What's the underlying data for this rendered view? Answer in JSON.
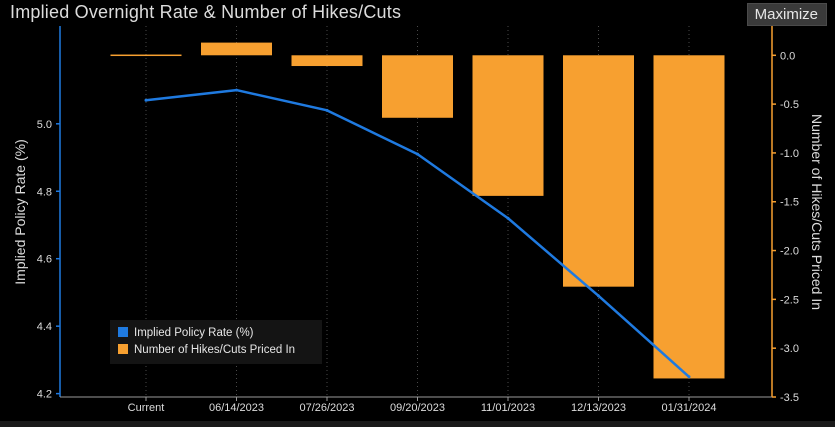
{
  "header": {
    "title": "Implied Overnight Rate & Number of Hikes/Cuts",
    "maximize_label": "Maximize"
  },
  "colors": {
    "background": "#000000",
    "line": "#1f7ae0",
    "bar": "#f7a030",
    "axis_left": "#1f7ae0",
    "axis_right": "#f7a030",
    "grid": "#4a4a4a"
  },
  "chart_data": {
    "type": "bar",
    "title": "Implied Overnight Rate & Number of Hikes/Cuts",
    "categories": [
      "Current",
      "06/14/2023",
      "07/26/2023",
      "09/20/2023",
      "11/01/2023",
      "12/13/2023",
      "01/31/2024"
    ],
    "series": [
      {
        "name": "Implied Policy Rate (%)",
        "type": "line",
        "axis": "left",
        "values": [
          5.07,
          5.1,
          5.04,
          4.91,
          4.72,
          4.49,
          4.25
        ]
      },
      {
        "name": "Number of Hikes/Cuts Priced In",
        "type": "bar",
        "axis": "right",
        "values": [
          0.0,
          0.13,
          -0.11,
          -0.64,
          -1.44,
          -2.37,
          -3.31
        ]
      }
    ],
    "ylabel_left": "Implied Policy Rate (%)",
    "ylabel_right": "Number of Hikes/Cuts Priced In",
    "ylim_left": [
      4.19,
      5.29
    ],
    "ylim_right": [
      -3.5,
      0.3
    ],
    "yticks_left": [
      "4.2",
      "4.4",
      "4.6",
      "4.8",
      "5.0"
    ],
    "yticks_right": [
      "0.0",
      "-0.5",
      "-1.0",
      "-1.5",
      "-2.0",
      "-2.5",
      "-3.0",
      "-3.5"
    ],
    "legend": [
      "Implied Policy Rate (%)",
      "Number of Hikes/Cuts Priced In"
    ],
    "legend_position": "bottom-left",
    "grid": true
  }
}
